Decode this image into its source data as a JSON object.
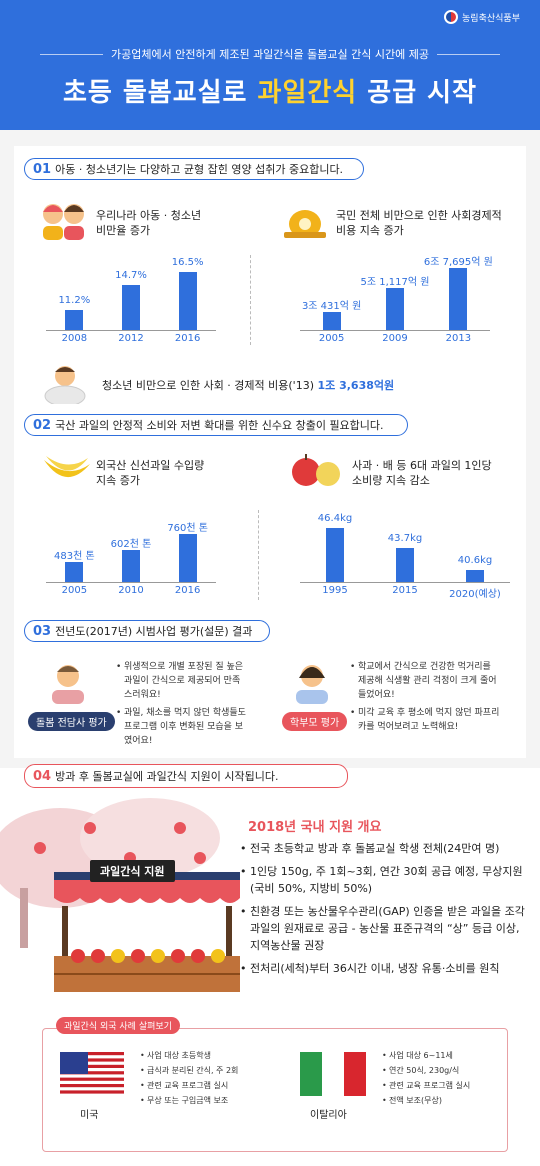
{
  "header": {
    "logo_text": "농림축산식품부",
    "subtitle": "가공업체에서 안전하게 제조된 과일간식을 돌봄교실 간식 시간에 제공",
    "title_pre": "초등 돌봄교실로 ",
    "title_highlight": "과일간식",
    "title_post": " 공급 시작"
  },
  "section1": {
    "num": "01",
    "text": "아동 · 청소년기는 다양하고 균형 잡힌 영양 섭취가 중요합니다.",
    "left_label_1": "우리나라 아동 · 청소년",
    "left_label_2": "비만율 증가",
    "right_label_1": "국민 전체 비만으로 인한 사회경제적",
    "right_label_2": "비용 지속 증가",
    "bottom_label": "청소년 비만으로 인한 사회 · 경제적 비용('13)",
    "bottom_value": "1조 3,638억원"
  },
  "section2": {
    "num": "02",
    "text": "국산 과일의 안정적 소비와 저변 확대를 위한 신수요 창출이 필요합니다.",
    "left_label_1": "외국산 신선과일 수입량",
    "left_label_2": "지속 증가",
    "right_label_1": "사과 · 배 등 6대 과일의 1인당",
    "right_label_2": "소비량 지속 감소"
  },
  "section3": {
    "num": "03",
    "text": "전년도(2017년) 시범사업 평가(설문) 결과",
    "left_tag": "돌봄 전담사 평가",
    "left_items": [
      "위생적으로 개별 포장된 질 높은 과일이 간식으로 제공되어 만족스러워요!",
      "과일, 채소를 먹지 않던 학생들도 프로그램 이후 변화된 모습을 보였어요!"
    ],
    "right_tag": "학부모 평가",
    "right_items": [
      "학교에서 간식으로 건강한 먹거리를 제공해 식생활 관리 걱정이 크게 줄어들었어요!",
      "미각 교육 후 평소에 먹지 않던 파프리카를 먹어보려고 노력해요!"
    ]
  },
  "section4": {
    "num": "04",
    "text": "방과 후 돌봄교실에 과일간식 지원이 시작됩니다.",
    "stall_sign": "과일간식 지원",
    "overview_title": "2018년 국내 지원 개요",
    "items": [
      "전국 초등학교 방과 후 돌봄교실 학생 전체(24만여 명)",
      "1인당 150g, 주 1회~3회, 연간 30회 공급 예정, 무상지원(국비 50%, 지방비 50%)",
      "친환경 또는 농산물우수관리(GAP) 인증을 받은 과일을 조각과일의 원재료로 공급 - 농산물 표준규격의 “상” 등급 이상, 지역농산물 권장",
      "전처리(세척)부터 36시간 이내, 냉장 유통·소비를 원칙"
    ],
    "cases_tag": "과일간식 외국 사례 살펴보기",
    "usa_name": "미국",
    "usa_items": [
      "사업 대상 초등학생",
      "급식과 분리된 간식, 주 2회",
      "관련 교육 프로그램 실시",
      "무상 또는 구입금액 보조"
    ],
    "italy_name": "이탈리아",
    "italy_items": [
      "사업 대상 6~11세",
      "연간 50식, 230g/식",
      "관련 교육 프로그램 실시",
      "전액 보조(무상)"
    ]
  },
  "chart_data": [
    {
      "type": "bar",
      "categories": [
        "2008",
        "2012",
        "2016"
      ],
      "values": [
        11.2,
        14.7,
        16.5
      ],
      "labels": [
        "11.2%",
        "14.7%",
        "16.5%"
      ]
    },
    {
      "type": "bar",
      "categories": [
        "2005",
        "2009",
        "2013"
      ],
      "values": [
        3.0431,
        5.1117,
        6.7695
      ],
      "labels": [
        "3조 431억 원",
        "5조 1,117억 원",
        "6조 7,695억 원"
      ]
    },
    {
      "type": "bar",
      "categories": [
        "2005",
        "2010",
        "2016"
      ],
      "values": [
        483,
        602,
        760
      ],
      "labels": [
        "483천 톤",
        "602천 톤",
        "760천 톤"
      ]
    },
    {
      "type": "bar",
      "categories": [
        "1995",
        "2015",
        "2020(예상)"
      ],
      "values": [
        46.4,
        43.7,
        40.6
      ],
      "labels": [
        "46.4kg",
        "43.7kg",
        "40.6kg"
      ]
    }
  ],
  "colors": {
    "primary": "#2f6fdc",
    "accent": "#ffd22e",
    "red": "#e8555c"
  }
}
